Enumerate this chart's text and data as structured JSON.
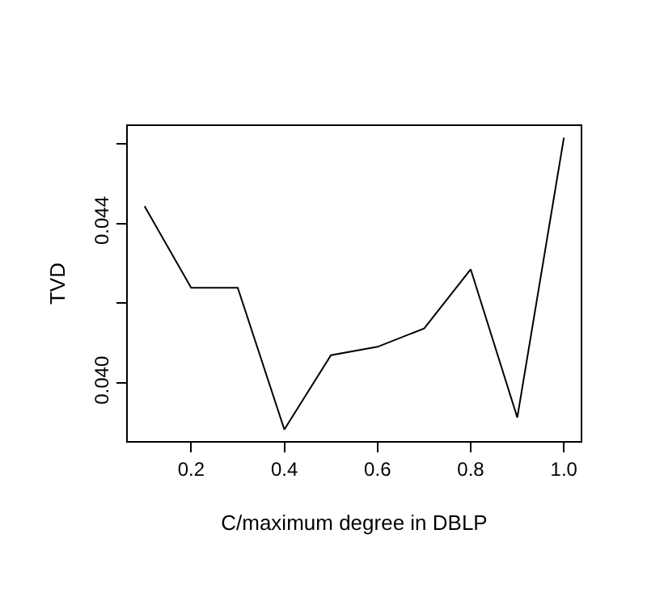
{
  "chart_data": {
    "type": "line",
    "xlabel": "C/maximum degree in DBLP",
    "ylabel": "TVD",
    "x": [
      0.1,
      0.2,
      0.3,
      0.4,
      0.5,
      0.6,
      0.7,
      0.8,
      0.9,
      1.0
    ],
    "series": [
      {
        "color": "#000000",
        "values": [
          0.04443,
          0.04239,
          0.04239,
          0.03884,
          0.0407,
          0.04091,
          0.04137,
          0.04285,
          0.03914,
          0.04615
        ]
      }
    ],
    "xlim": [
      0.064,
      1.036
    ],
    "ylim": [
      0.03855,
      0.04644
    ],
    "xticks": [
      0.2,
      0.4,
      0.6,
      0.8,
      {
        "value": 1.0,
        "label": "1.0"
      }
    ],
    "yticks": [
      {
        "value": 0.04,
        "label": "0.040"
      },
      {
        "value": 0.042,
        "label": null
      },
      {
        "value": 0.044,
        "label": "0.044"
      },
      {
        "value": 0.046,
        "label": null
      }
    ],
    "marker": "none",
    "line_style": "solid"
  }
}
